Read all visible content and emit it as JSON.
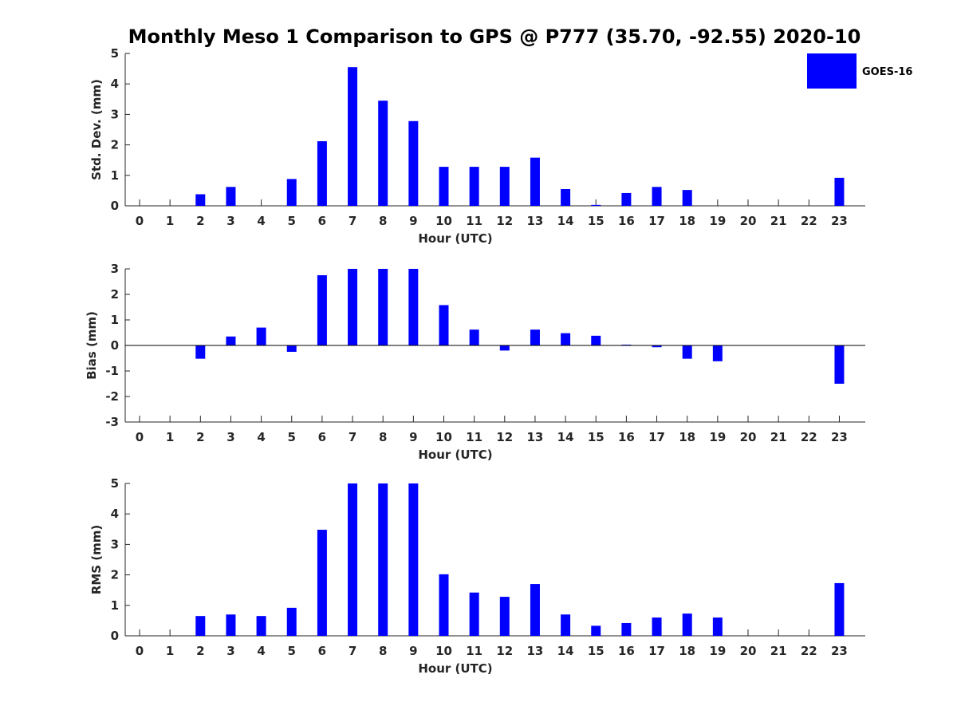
{
  "title": "Monthly Meso 1 Comparison to GPS @ P777 (35.70, -92.55) 2020-10",
  "legend": {
    "label": "GOES-16",
    "color": "#0000ff",
    "placement": "top-right"
  },
  "chart_data": [
    {
      "type": "bar",
      "xlabel": "Hour (UTC)",
      "ylabel": "Std. Dev. (mm)",
      "ylim": [
        0,
        5
      ],
      "yticks": [
        0,
        1,
        2,
        3,
        4,
        5
      ],
      "categories": [
        "0",
        "1",
        "2",
        "3",
        "4",
        "5",
        "6",
        "7",
        "8",
        "9",
        "10",
        "11",
        "12",
        "13",
        "14",
        "15",
        "16",
        "17",
        "18",
        "19",
        "20",
        "21",
        "22",
        "23"
      ],
      "series": [
        {
          "name": "GOES-16",
          "values": [
            null,
            null,
            0.38,
            0.62,
            null,
            0.88,
            2.12,
            4.55,
            3.45,
            2.78,
            1.28,
            1.28,
            1.28,
            1.58,
            0.55,
            0.03,
            0.42,
            0.62,
            0.52,
            null,
            null,
            null,
            null,
            0.92
          ]
        }
      ],
      "grid": false
    },
    {
      "type": "bar",
      "xlabel": "Hour (UTC)",
      "ylabel": "Bias (mm)",
      "ylim": [
        -3,
        3
      ],
      "yticks": [
        -3,
        -2,
        -1,
        0,
        1,
        2,
        3
      ],
      "categories": [
        "0",
        "1",
        "2",
        "3",
        "4",
        "5",
        "6",
        "7",
        "8",
        "9",
        "10",
        "11",
        "12",
        "13",
        "14",
        "15",
        "16",
        "17",
        "18",
        "19",
        "20",
        "21",
        "22",
        "23"
      ],
      "series": [
        {
          "name": "GOES-16",
          "values": [
            null,
            null,
            -0.52,
            0.35,
            0.7,
            -0.25,
            2.75,
            3.0,
            3.0,
            3.0,
            1.58,
            0.62,
            -0.2,
            0.62,
            0.48,
            0.38,
            0.03,
            -0.07,
            -0.52,
            -0.62,
            null,
            null,
            null,
            -1.5
          ]
        }
      ],
      "grid": false
    },
    {
      "type": "bar",
      "xlabel": "Hour (UTC)",
      "ylabel": "RMS (mm)",
      "ylim": [
        0,
        5
      ],
      "yticks": [
        0,
        1,
        2,
        3,
        4,
        5
      ],
      "categories": [
        "0",
        "1",
        "2",
        "3",
        "4",
        "5",
        "6",
        "7",
        "8",
        "9",
        "10",
        "11",
        "12",
        "13",
        "14",
        "15",
        "16",
        "17",
        "18",
        "19",
        "20",
        "21",
        "22",
        "23"
      ],
      "series": [
        {
          "name": "GOES-16",
          "values": [
            null,
            null,
            0.65,
            0.7,
            0.65,
            0.92,
            3.48,
            5.0,
            5.0,
            5.0,
            2.02,
            1.42,
            1.28,
            1.7,
            0.7,
            0.33,
            0.42,
            0.6,
            0.73,
            0.6,
            null,
            null,
            null,
            1.73
          ]
        }
      ],
      "grid": false
    }
  ]
}
